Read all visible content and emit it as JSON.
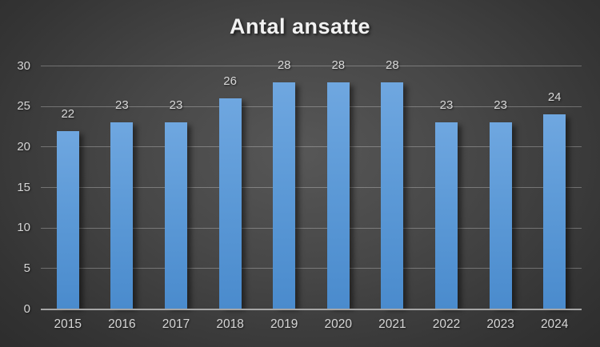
{
  "chart_data": {
    "type": "bar",
    "title": "Antal ansatte",
    "categories": [
      "2015",
      "2016",
      "2017",
      "2018",
      "2019",
      "2020",
      "2021",
      "2022",
      "2023",
      "2024"
    ],
    "values": [
      22,
      23,
      23,
      26,
      28,
      28,
      28,
      23,
      23,
      24
    ],
    "data_labels": [
      "22",
      "23",
      "23",
      "26",
      "28",
      "28",
      "28",
      "23",
      "23",
      "24"
    ],
    "xlabel": "",
    "ylabel": "",
    "ylim": [
      0,
      30
    ],
    "yticks": [
      0,
      5,
      10,
      15,
      20,
      25,
      30
    ],
    "grid": "horizontal",
    "legend": "none",
    "colors": {
      "bar_top": "#6fa7e0",
      "bar_bottom": "#4a8bcd",
      "background_center": "#575757",
      "background_edge": "#262626",
      "gridline": "rgba(255,255,255,0.28)",
      "axis_line": "#a6a6a6",
      "tick_label": "#d6d6d6",
      "data_label": "#d9d9d9",
      "title": "#f2f2f2"
    }
  }
}
